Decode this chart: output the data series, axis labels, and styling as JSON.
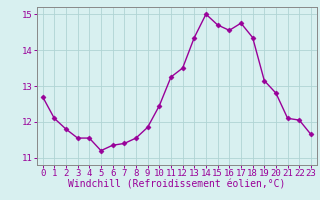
{
  "x": [
    0,
    1,
    2,
    3,
    4,
    5,
    6,
    7,
    8,
    9,
    10,
    11,
    12,
    13,
    14,
    15,
    16,
    17,
    18,
    19,
    20,
    21,
    22,
    23
  ],
  "y": [
    12.7,
    12.1,
    11.8,
    11.55,
    11.55,
    11.2,
    11.35,
    11.4,
    11.55,
    11.85,
    12.45,
    13.25,
    13.5,
    14.35,
    15.0,
    14.7,
    14.55,
    14.75,
    14.35,
    13.15,
    12.8,
    12.1,
    12.05,
    11.65
  ],
  "line_color": "#990099",
  "marker": "D",
  "markersize": 2.5,
  "linewidth": 1.0,
  "bg_color": "#d8f0f0",
  "grid_color": "#b0d4d4",
  "xlabel": "Windchill (Refroidissement éolien,°C)",
  "xlabel_fontsize": 7,
  "tick_fontsize": 6.5,
  "ylim": [
    10.8,
    15.2
  ],
  "yticks": [
    11,
    12,
    13,
    14,
    15
  ],
  "xticks": [
    0,
    1,
    2,
    3,
    4,
    5,
    6,
    7,
    8,
    9,
    10,
    11,
    12,
    13,
    14,
    15,
    16,
    17,
    18,
    19,
    20,
    21,
    22,
    23
  ],
  "spine_color": "#888888"
}
